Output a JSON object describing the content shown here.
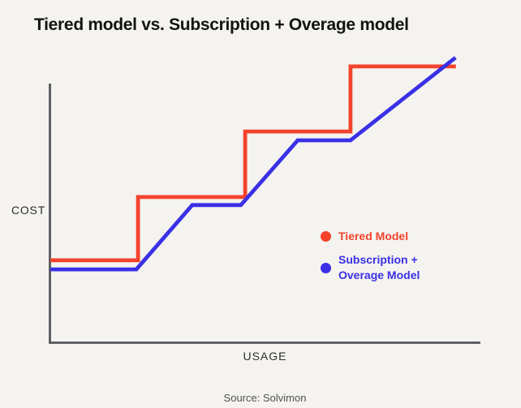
{
  "title": "Tiered model vs. Subscription + Overage model",
  "axes": {
    "y_label": "COST",
    "x_label": "USAGE"
  },
  "source": "Source: Solvimon",
  "colors": {
    "background": "#f5f3f0",
    "axis": "#56565a",
    "tiered": "#f4432c",
    "subscription": "#3a30e6",
    "title_text": "#131313",
    "axis_label_text": "#2d2d2e",
    "source_text": "#515151"
  },
  "legend": {
    "tiered": {
      "label": "Tiered Model",
      "color": "#f4432c"
    },
    "subscription": {
      "line1": "Subscription +",
      "line2": "Overage Model",
      "color": "#3a30e6"
    }
  },
  "chart_data": {
    "type": "line",
    "title": "Tiered model vs. Subscription + Overage model",
    "xlabel": "USAGE",
    "ylabel": "COST",
    "x_range": [
      0,
      100
    ],
    "y_range": [
      0,
      100
    ],
    "grid": false,
    "tick_labels": "none",
    "legend_position": "inside-right-middle",
    "series": [
      {
        "name": "Tiered Model",
        "color": "#f4432c",
        "shape": "step",
        "points": [
          [
            0,
            31.8
          ],
          [
            20.4,
            31.8
          ],
          [
            20.4,
            56.2
          ],
          [
            45.3,
            56.2
          ],
          [
            45.3,
            81.5
          ],
          [
            69.8,
            81.5
          ],
          [
            69.8,
            106.6
          ],
          [
            94.3,
            106.6
          ]
        ]
      },
      {
        "name": "Subscription + Overage Model",
        "color": "#3a30e6",
        "shape": "piecewise-linear",
        "points": [
          [
            0,
            28.3
          ],
          [
            20.0,
            28.3
          ],
          [
            33.0,
            53.1
          ],
          [
            44.3,
            53.1
          ],
          [
            57.5,
            78.1
          ],
          [
            69.8,
            78.1
          ],
          [
            94.2,
            110.0
          ]
        ]
      }
    ]
  }
}
